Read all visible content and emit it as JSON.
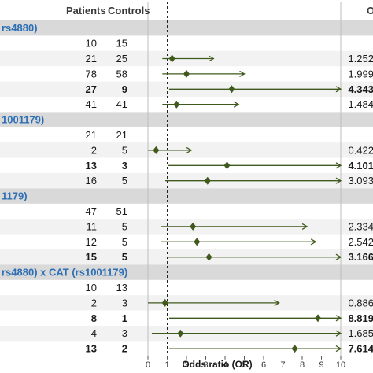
{
  "header": {
    "col_patients": "Patients",
    "col_controls": "Controls",
    "col_or": "O"
  },
  "chart_data": {
    "type": "forest",
    "xlabel": "Odds ratio (OR)",
    "xlim": [
      0,
      10
    ],
    "xticks": [
      "0",
      "1",
      "2",
      "3",
      "4",
      "5",
      "6",
      "7",
      "8",
      "9",
      "10"
    ],
    "reference_line": 1,
    "colors": {
      "marker": "#3f5a1c",
      "band": "#d9d9d9",
      "alt_row": "#f2f2f2",
      "section_text": "#2e6fb4"
    },
    "rows": [
      {
        "kind": "section",
        "label": "rs4880)"
      },
      {
        "kind": "data",
        "patients": "10",
        "controls": "15",
        "or_text": "",
        "or": null,
        "lo": null,
        "hi": null,
        "bold": false
      },
      {
        "kind": "data",
        "patients": "21",
        "controls": "25",
        "or_text": "1.252",
        "or": 1.252,
        "lo": 0.75,
        "hi": 3.4,
        "bold": false
      },
      {
        "kind": "data",
        "patients": "78",
        "controls": "58",
        "or_text": "1.999",
        "or": 1.999,
        "lo": 0.75,
        "hi": 5.0,
        "bold": false
      },
      {
        "kind": "data",
        "patients": "27",
        "controls": "9",
        "or_text": "4.343",
        "or": 4.343,
        "lo": 1.1,
        "hi": 10.0,
        "bold": true
      },
      {
        "kind": "data",
        "patients": "41",
        "controls": "41",
        "or_text": "1.484",
        "or": 1.484,
        "lo": 0.75,
        "hi": 4.7,
        "bold": false
      },
      {
        "kind": "section",
        "label": "1001179)"
      },
      {
        "kind": "data",
        "patients": "21",
        "controls": "21",
        "or_text": "",
        "or": null,
        "lo": null,
        "hi": null,
        "bold": false
      },
      {
        "kind": "data",
        "patients": "2",
        "controls": "5",
        "or_text": "0.422",
        "or": 0.422,
        "lo": 0.0,
        "hi": 2.25,
        "bold": false
      },
      {
        "kind": "data",
        "patients": "13",
        "controls": "3",
        "or_text": "4.101",
        "or": 4.101,
        "lo": 1.05,
        "hi": 10.0,
        "bold": true
      },
      {
        "kind": "data",
        "patients": "16",
        "controls": "5",
        "or_text": "3.093",
        "or": 3.093,
        "lo": 0.9,
        "hi": 10.0,
        "bold": false
      },
      {
        "kind": "section",
        "label": "1179)"
      },
      {
        "kind": "data",
        "patients": "47",
        "controls": "51",
        "or_text": "",
        "or": null,
        "lo": null,
        "hi": null,
        "bold": false
      },
      {
        "kind": "data",
        "patients": "11",
        "controls": "5",
        "or_text": "2.334",
        "or": 2.334,
        "lo": 0.7,
        "hi": 8.25,
        "bold": false
      },
      {
        "kind": "data",
        "patients": "12",
        "controls": "5",
        "or_text": "2.542",
        "or": 2.542,
        "lo": 0.7,
        "hi": 8.7,
        "bold": false
      },
      {
        "kind": "data",
        "patients": "15",
        "controls": "5",
        "or_text": "3.166",
        "or": 3.166,
        "lo": 1.05,
        "hi": 10.0,
        "bold": true
      },
      {
        "kind": "section",
        "label": "rs4880) x CAT (rs1001179)"
      },
      {
        "kind": "data",
        "patients": "10",
        "controls": "13",
        "or_text": "",
        "or": null,
        "lo": null,
        "hi": null,
        "bold": false
      },
      {
        "kind": "data",
        "patients": "2",
        "controls": "3",
        "or_text": "0.886",
        "or": 0.886,
        "lo": 0.0,
        "hi": 6.8,
        "bold": false
      },
      {
        "kind": "data",
        "patients": "8",
        "controls": "1",
        "or_text": "8.819",
        "or": 8.819,
        "lo": 1.1,
        "hi": 10.0,
        "bold": true
      },
      {
        "kind": "data",
        "patients": "4",
        "controls": "3",
        "or_text": "1.685",
        "or": 1.685,
        "lo": 0.2,
        "hi": 10.0,
        "bold": false
      },
      {
        "kind": "data",
        "patients": "13",
        "controls": "2",
        "or_text": "7.614",
        "or": 7.614,
        "lo": 1.1,
        "hi": 10.0,
        "bold": true
      }
    ]
  }
}
